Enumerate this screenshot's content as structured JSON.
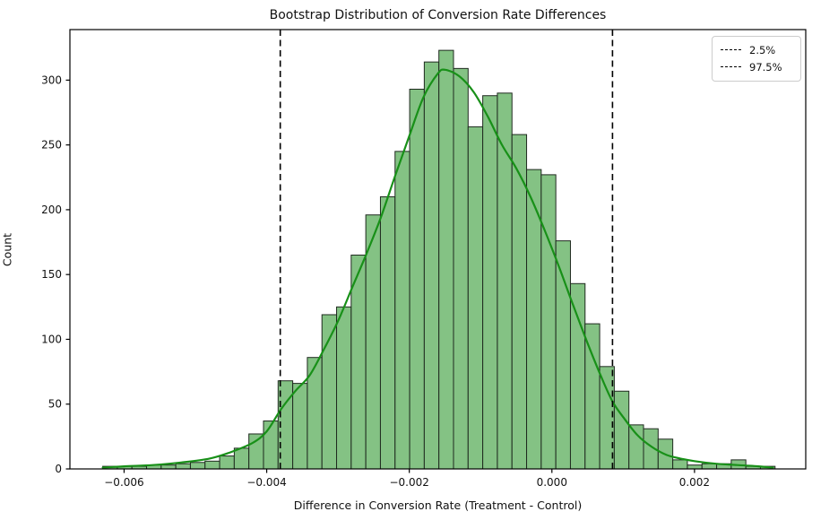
{
  "page": {
    "background": "#ffffff"
  },
  "chart_data": {
    "type": "bar",
    "subtype": "histogram-with-kde",
    "title": "Bootstrap Distribution of Conversion Rate Differences",
    "xlabel": "Difference in Conversion Rate (Treatment - Control)",
    "ylabel": "Count",
    "xlim": [
      -0.00676,
      0.00356
    ],
    "ylim": [
      0,
      339
    ],
    "x_ticks": [
      -0.006,
      -0.004,
      -0.002,
      0.0,
      0.002
    ],
    "x_tick_labels": [
      "−0.006",
      "−0.004",
      "−0.002",
      "0.000",
      "0.002"
    ],
    "y_ticks": [
      0,
      50,
      100,
      150,
      200,
      250,
      300
    ],
    "y_tick_labels": [
      "0",
      "50",
      "100",
      "150",
      "200",
      "250",
      "300"
    ],
    "grid": false,
    "bins": {
      "start": -0.0063,
      "width": 0.000205,
      "counts": [
        2,
        2,
        2,
        3,
        3,
        4,
        5,
        6,
        10,
        16,
        27,
        37,
        68,
        66,
        86,
        119,
        125,
        165,
        196,
        210,
        245,
        293,
        314,
        323,
        309,
        264,
        288,
        290,
        258,
        231,
        227,
        176,
        143,
        112,
        79,
        60,
        34,
        31,
        23,
        7,
        3,
        4,
        4,
        7,
        2,
        2
      ]
    },
    "kde": [
      [
        -0.0063,
        1
      ],
      [
        -0.006,
        2
      ],
      [
        -0.0056,
        3
      ],
      [
        -0.0052,
        5
      ],
      [
        -0.0048,
        8
      ],
      [
        -0.0045,
        13
      ],
      [
        -0.0042,
        20
      ],
      [
        -0.004,
        29
      ],
      [
        -0.0038,
        46
      ],
      [
        -0.0036,
        60
      ],
      [
        -0.0034,
        72
      ],
      [
        -0.0032,
        92
      ],
      [
        -0.003,
        114
      ],
      [
        -0.0028,
        140
      ],
      [
        -0.0026,
        166
      ],
      [
        -0.0024,
        194
      ],
      [
        -0.0022,
        226
      ],
      [
        -0.002,
        257
      ],
      [
        -0.0018,
        287
      ],
      [
        -0.0016,
        305
      ],
      [
        -0.0015,
        308
      ],
      [
        -0.0013,
        303
      ],
      [
        -0.0011,
        291
      ],
      [
        -0.0009,
        272
      ],
      [
        -0.0007,
        250
      ],
      [
        -0.0005,
        232
      ],
      [
        -0.0003,
        210
      ],
      [
        -0.0001,
        184
      ],
      [
        0.0001,
        156
      ],
      [
        0.0003,
        126
      ],
      [
        0.0005,
        97
      ],
      [
        0.0007,
        70
      ],
      [
        0.00085,
        52
      ],
      [
        0.001,
        40
      ],
      [
        0.0012,
        26
      ],
      [
        0.0014,
        17
      ],
      [
        0.0016,
        11
      ],
      [
        0.0018,
        8
      ],
      [
        0.002,
        6
      ],
      [
        0.0023,
        4
      ],
      [
        0.0026,
        3
      ],
      [
        0.0029,
        2
      ],
      [
        0.0031,
        1
      ]
    ],
    "vlines": [
      {
        "value": -0.00381,
        "label": "2.5%"
      },
      {
        "value": 0.00085,
        "label": "97.5%"
      }
    ],
    "legend": {
      "position": "upper right",
      "entries": [
        {
          "label": "2.5%"
        },
        {
          "label": "97.5%"
        }
      ]
    },
    "colors": {
      "bar_fill": "#84c284",
      "bar_edge": "#1f2a1f",
      "kde_line": "#189018",
      "vline": "#000000",
      "spine": "#000000",
      "tick_text": "#111111"
    }
  }
}
